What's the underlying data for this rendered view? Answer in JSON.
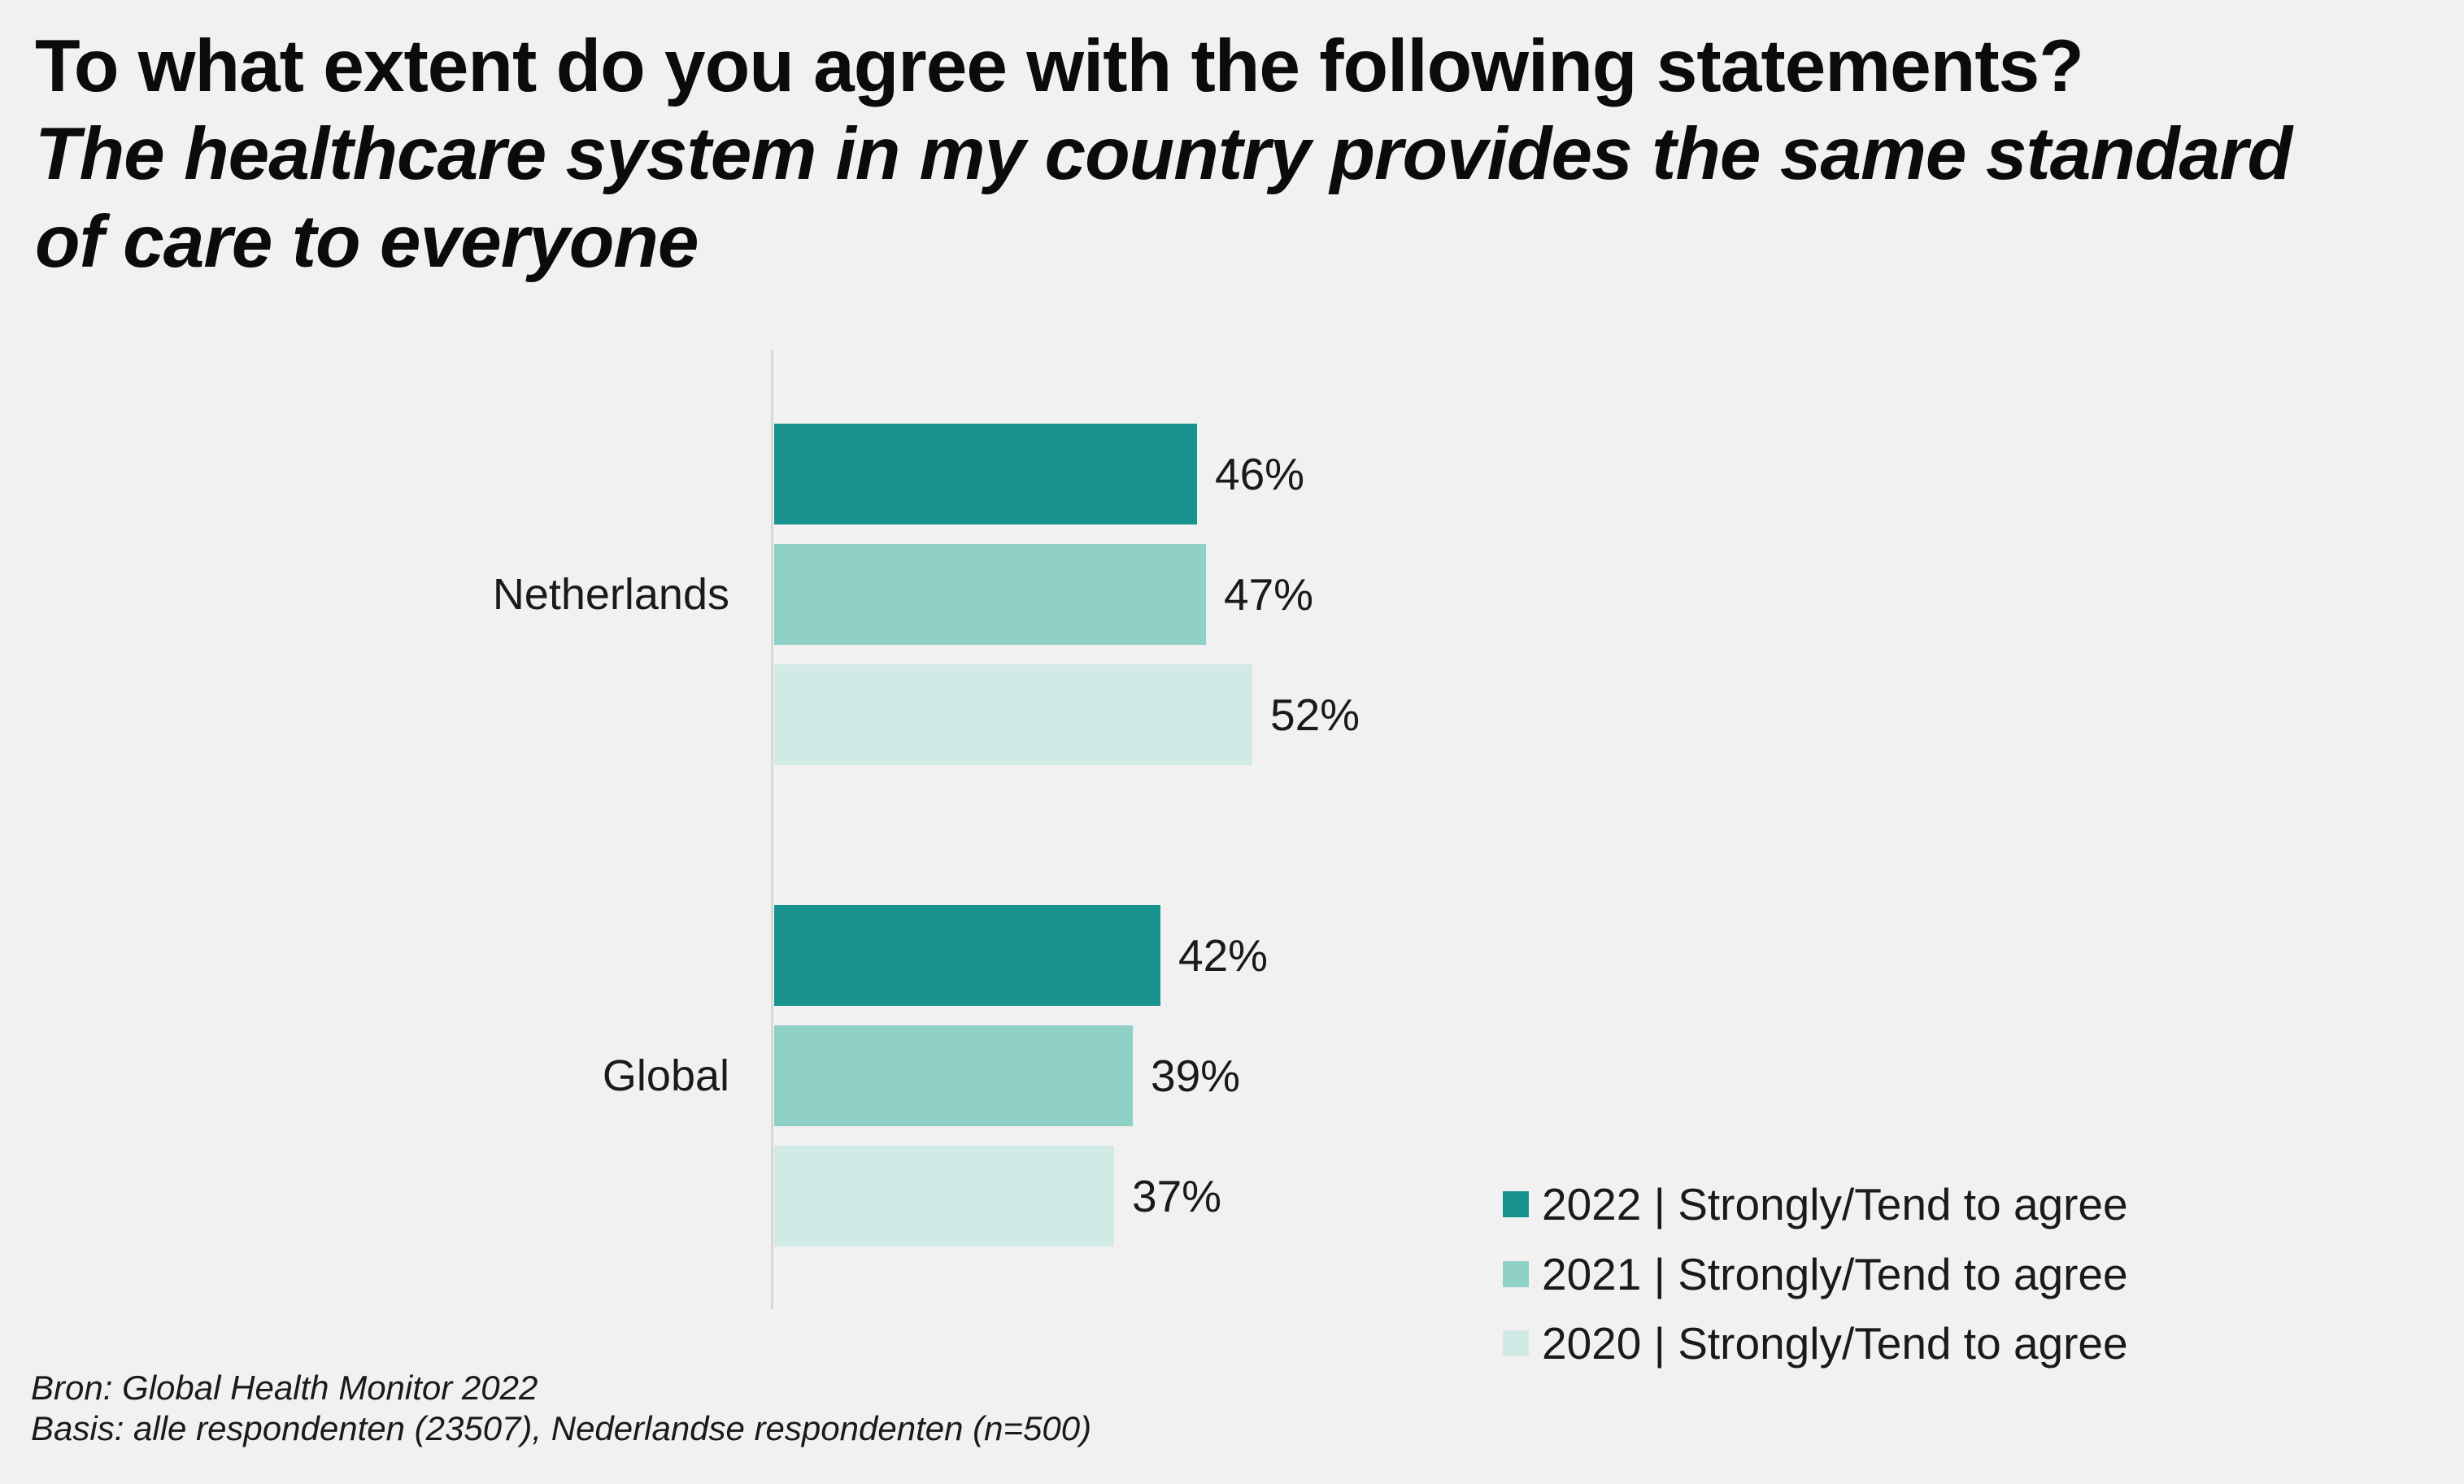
{
  "title": {
    "line1": "To what extent do you agree with the following statements?",
    "line2": "The healthcare system in my country provides the same standard",
    "line3": "of care to everyone"
  },
  "legend": [
    {
      "label": "2022 | Strongly/Tend to agree",
      "color": "#189390"
    },
    {
      "label": "2021 | Strongly/Tend to agree",
      "color": "#8FD0C7"
    },
    {
      "label": "2020 | Strongly/Tend to agree",
      "color": "#D2EAE6"
    }
  ],
  "footer": {
    "source": "Bron: Global Health Monitor 2022",
    "basis": "Basis: alle respondenten (23507), Nederlandse respondenten (n=500)"
  },
  "chart_data": {
    "type": "bar",
    "orientation": "horizontal",
    "title": "To what extent do you agree with the following statements? The healthcare system in my country provides the same standard of care to everyone",
    "categories": [
      "Netherlands",
      "Global"
    ],
    "series": [
      {
        "name": "2022 | Strongly/Tend to agree",
        "color": "#189390",
        "values": [
          46,
          42
        ]
      },
      {
        "name": "2021 | Strongly/Tend to agree",
        "color": "#8FD0C7",
        "values": [
          47,
          39
        ]
      },
      {
        "name": "2020 | Strongly/Tend to agree",
        "color": "#D2EAE6",
        "values": [
          52,
          37
        ]
      }
    ],
    "value_label_suffix": "%",
    "value_labels_shown": true,
    "xlabel": "",
    "ylabel": "",
    "xlim": [
      0,
      100
    ],
    "grid": false,
    "axis_baseline_color": "#D8D8D8",
    "background_color": "#F1F1F1",
    "legend_position": "bottom-right"
  }
}
